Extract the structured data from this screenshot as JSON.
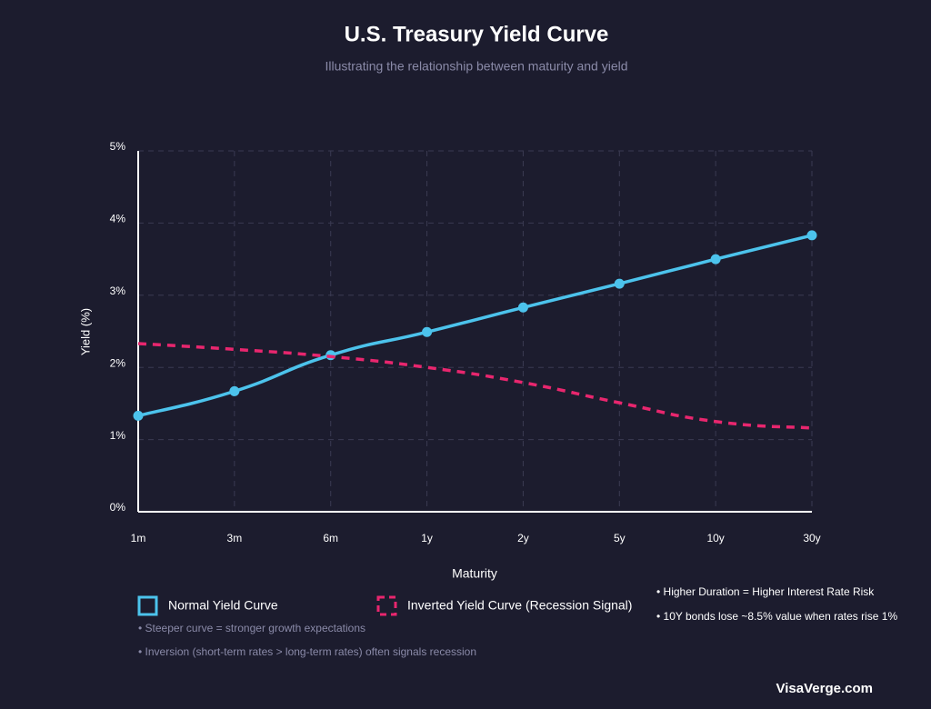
{
  "chart_data": {
    "type": "line",
    "title": "U.S. Treasury Yield Curve",
    "subtitle": "Illustrating the relationship between maturity and yield",
    "x_label": "Maturity",
    "y_label": "Yield (%)",
    "categories": [
      "1m",
      "3m",
      "6m",
      "1y",
      "2y",
      "5y",
      "10y",
      "30y"
    ],
    "series": [
      {
        "name": "Normal Yield Curve",
        "color": "#4cc3ec",
        "line_style": "solid",
        "markers": true,
        "values": [
          1.33,
          1.67,
          2.17,
          2.49,
          2.83,
          3.16,
          3.5,
          3.83
        ]
      },
      {
        "name": "Inverted Yield Curve (Recession Signal)",
        "color": "#e8266e",
        "line_style": "dashed",
        "markers": false,
        "values": [
          2.33,
          2.25,
          2.15,
          2.0,
          1.79,
          1.51,
          1.25,
          1.16
        ]
      }
    ],
    "ylim": [
      0,
      5
    ],
    "yticks": [
      {
        "value": 0,
        "label": "0%"
      },
      {
        "value": 1,
        "label": "1%"
      },
      {
        "value": 2,
        "label": "2%"
      },
      {
        "value": 3,
        "label": "3%"
      },
      {
        "value": 4,
        "label": "4%"
      },
      {
        "value": 5,
        "label": "5%"
      }
    ],
    "grid": true,
    "annotations_left": [
      "• Steeper curve = stronger growth expectations",
      "• Inversion (short-term rates > long-term rates) often signals recession"
    ],
    "annotations_right": [
      "• Higher Duration = Higher Interest Rate Risk",
      "• 10Y bonds lose ~8.5% value when rates rise 1%"
    ],
    "footer": "VisaVerge.com"
  }
}
